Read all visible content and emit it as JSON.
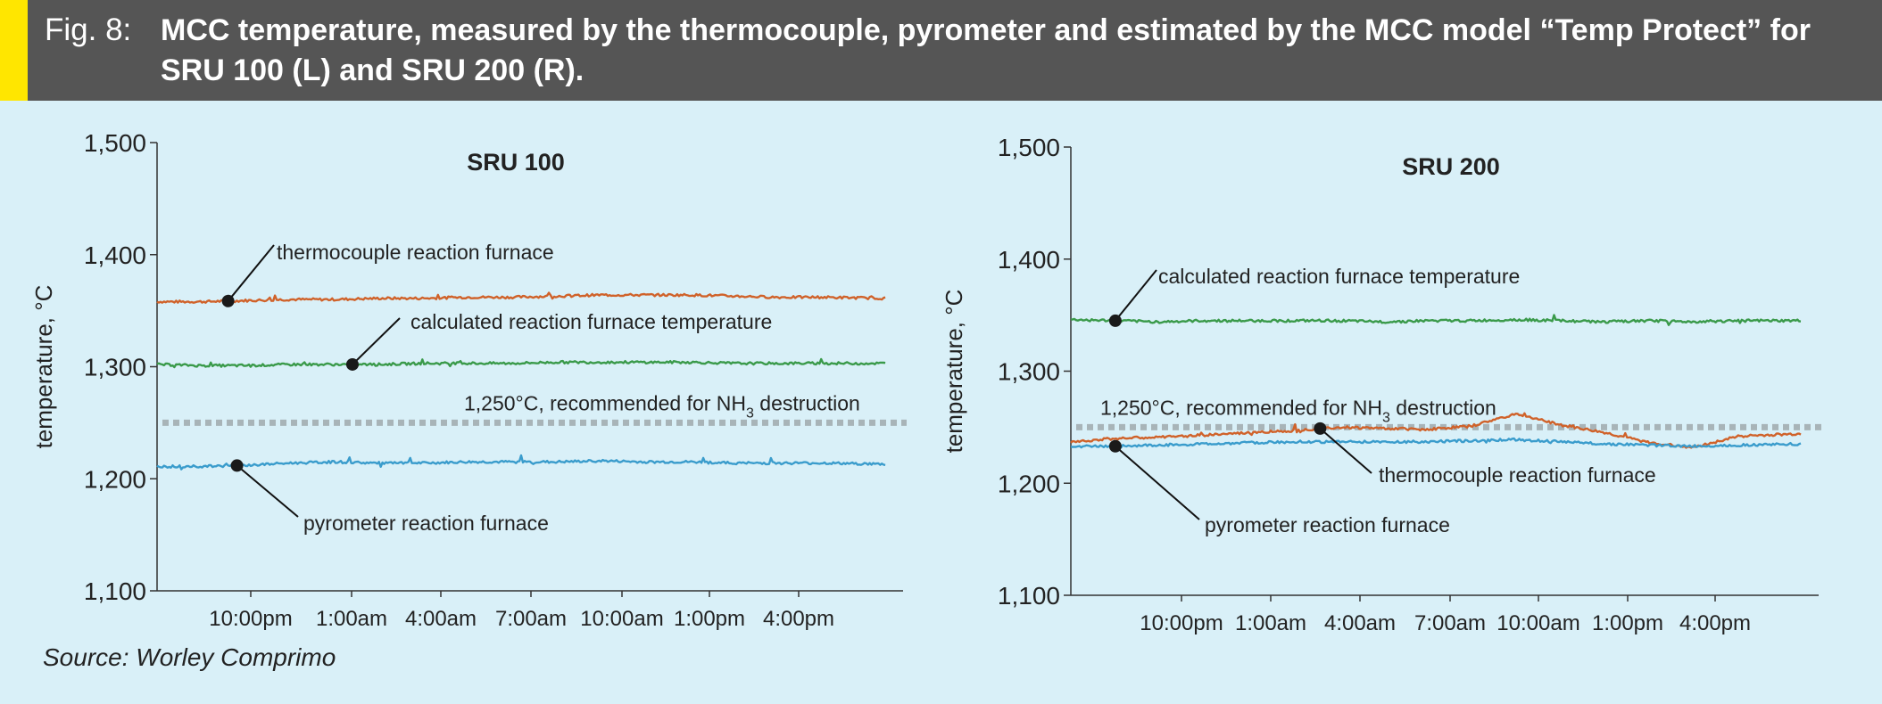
{
  "figure": {
    "label": "Fig. 8:",
    "title": "MCC temperature, measured by the thermocouple, pyrometer and estimated by the MCC model “Temp Protect” for SRU 100 (L) and SRU 200 (R).",
    "source": "Source: Worley Comprimo",
    "colors": {
      "header_bg": "#555555",
      "accent": "#ffe600",
      "panel_bg": "#d9f0f8",
      "thermocouple": "#d0622a",
      "calculated": "#3a9a4a",
      "pyrometer": "#3a9ccc",
      "recommended_line": "#a8b4b8"
    }
  },
  "chart_data": [
    {
      "type": "line",
      "title": "SRU 100",
      "ylabel": "temperature, °C",
      "xlabel": "",
      "ylim": [
        1100,
        1500
      ],
      "yticks": [
        "1,100",
        "1,200",
        "1,300",
        "1,400",
        "1,500"
      ],
      "ytick_values": [
        1100,
        1200,
        1300,
        1400,
        1500
      ],
      "xticks": [
        "10:00pm",
        "1:00am",
        "4:00am",
        "7:00am",
        "10:00am",
        "1:00pm",
        "4:00pm"
      ],
      "x_range": [
        0,
        8.4
      ],
      "x": [
        0,
        0.5,
        1,
        1.5,
        2,
        2.5,
        3,
        3.5,
        4,
        4.5,
        5,
        5.5,
        6,
        6.5,
        7,
        7.5,
        8.2
      ],
      "series": [
        {
          "name": "thermocouple reaction furnace",
          "color": "#d0622a",
          "values": [
            1358,
            1358,
            1359,
            1360,
            1360,
            1361,
            1361,
            1362,
            1362,
            1363,
            1364,
            1364,
            1364,
            1363,
            1362,
            1362,
            1361
          ]
        },
        {
          "name": "calculated reaction furnace temperature",
          "color": "#3a9a4a",
          "values": [
            1302,
            1301,
            1301,
            1302,
            1302,
            1302,
            1303,
            1303,
            1303,
            1304,
            1304,
            1304,
            1304,
            1303,
            1303,
            1303,
            1303
          ]
        },
        {
          "name": "pyrometer reaction furnace",
          "color": "#3a9ccc",
          "values": [
            1211,
            1211,
            1212,
            1214,
            1215,
            1214,
            1214,
            1215,
            1215,
            1215,
            1216,
            1215,
            1215,
            1214,
            1214,
            1214,
            1213
          ]
        }
      ],
      "reference": {
        "value": 1250,
        "label_prefix": "1,250°C, recommended for NH",
        "label_sub": "3",
        "label_suffix": " destruction"
      },
      "annotations": [
        {
          "series": 0,
          "x": 0.8,
          "text": "thermocouple reaction furnace",
          "side": "above"
        },
        {
          "series": 1,
          "x": 2.2,
          "text": "calculated reaction furnace temperature",
          "side": "above"
        },
        {
          "series": 2,
          "x": 0.9,
          "text": "pyrometer reaction furnace",
          "side": "below"
        }
      ]
    },
    {
      "type": "line",
      "title": "SRU 200",
      "ylabel": "temperature, °C",
      "xlabel": "",
      "ylim": [
        1100,
        1500
      ],
      "yticks": [
        "1,100",
        "1,200",
        "1,300",
        "1,400",
        "1,500"
      ],
      "ytick_values": [
        1100,
        1200,
        1300,
        1400,
        1500
      ],
      "xticks": [
        "10:00pm",
        "1:00am",
        "4:00am",
        "7:00am",
        "10:00am",
        "1:00pm",
        "4:00pm"
      ],
      "x_range": [
        0,
        8.4
      ],
      "x": [
        0,
        0.5,
        1,
        1.5,
        2,
        2.5,
        3,
        3.5,
        4,
        4.5,
        5,
        5.5,
        6,
        6.5,
        7,
        7.5,
        8.2
      ],
      "series": [
        {
          "name": "calculated reaction furnace temperature",
          "color": "#3a9a4a",
          "values": [
            1346,
            1345,
            1344,
            1345,
            1345,
            1345,
            1345,
            1344,
            1345,
            1345,
            1346,
            1345,
            1344,
            1345,
            1344,
            1345,
            1345
          ]
        },
        {
          "name": "thermocouple reaction furnace",
          "color": "#d0622a",
          "values": [
            1237,
            1240,
            1241,
            1243,
            1245,
            1247,
            1250,
            1249,
            1248,
            1251,
            1262,
            1252,
            1245,
            1236,
            1232,
            1242,
            1244
          ]
        },
        {
          "name": "pyrometer reaction furnace",
          "color": "#3a9ccc",
          "values": [
            1233,
            1233,
            1234,
            1235,
            1236,
            1237,
            1237,
            1237,
            1237,
            1238,
            1239,
            1237,
            1235,
            1234,
            1233,
            1234,
            1235
          ]
        }
      ],
      "reference": {
        "value": 1250,
        "label_prefix": "1,250°C, recommended for NH",
        "label_sub": "3",
        "label_suffix": " destruction"
      },
      "annotations": [
        {
          "series": 0,
          "x": 0.5,
          "text": "calculated reaction furnace temperature",
          "side": "above"
        },
        {
          "series": 1,
          "x": 2.8,
          "text": "thermocouple reaction furnace",
          "side": "below"
        },
        {
          "series": 2,
          "x": 0.5,
          "text": "pyrometer reaction furnace",
          "side": "below"
        }
      ]
    }
  ]
}
